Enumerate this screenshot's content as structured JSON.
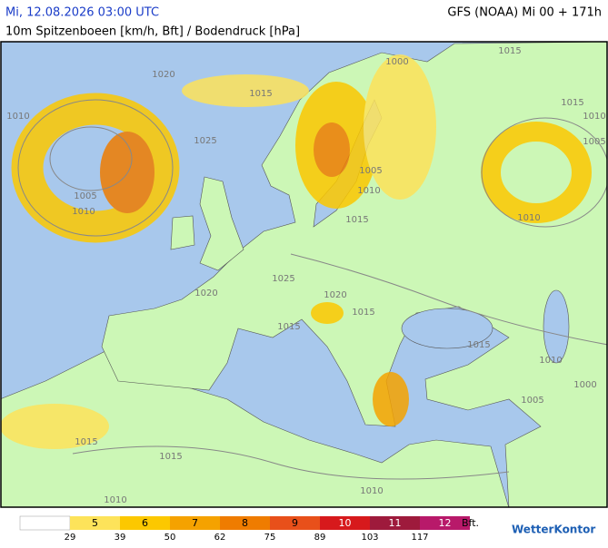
{
  "header": {
    "datetime": "Mi, 12.08.2026 03:00 UTC",
    "subtitle": "10m Spitzenboeen [km/h, Bft] / Bodendruck [hPa]",
    "model": "GFS (NOAA) Mi 00 + 171h"
  },
  "isobar_labels": [
    "1020",
    "1015",
    "1010",
    "1025",
    "1005",
    "1010",
    "1000",
    "1005",
    "1010",
    "1015",
    "1015",
    "1015",
    "1010",
    "1005",
    "1010",
    "1020",
    "1025",
    "1020",
    "1015",
    "1015",
    "1015",
    "1010",
    "1005",
    "1000",
    "1015",
    "1015",
    "1010",
    "1010"
  ],
  "legend": {
    "steps": [
      {
        "bft": 5,
        "color": "#fde35a"
      },
      {
        "bft": 6,
        "color": "#fcc800"
      },
      {
        "bft": 7,
        "color": "#f5a200"
      },
      {
        "bft": 8,
        "color": "#ef7c00"
      },
      {
        "bft": 9,
        "color": "#e8501a"
      },
      {
        "bft": 10,
        "color": "#d7191c"
      },
      {
        "bft": 11,
        "color": "#9e1a3c"
      },
      {
        "bft": 12,
        "color": "#b8196a"
      }
    ],
    "kmh": [
      29,
      39,
      50,
      62,
      75,
      89,
      103,
      117
    ],
    "unit": "Bft."
  },
  "brand": "WetterKontor"
}
